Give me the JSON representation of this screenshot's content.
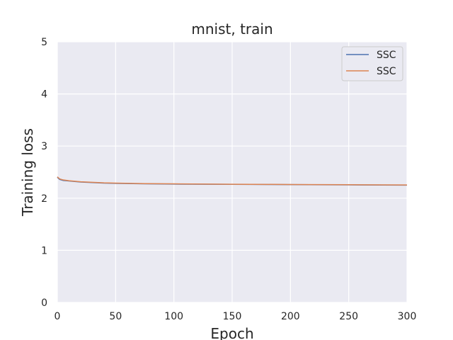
{
  "chart_data": {
    "type": "line",
    "title": "mnist, train",
    "xlabel": "Epoch",
    "ylabel": "Training loss",
    "xlim": [
      0,
      300
    ],
    "ylim": [
      0,
      5
    ],
    "xticks": [
      0,
      50,
      100,
      150,
      200,
      250,
      300
    ],
    "yticks": [
      0,
      1,
      2,
      3,
      4,
      5
    ],
    "grid": true,
    "legend_position": "top-right",
    "series": [
      {
        "name": "SSC",
        "color": "#4c72b0",
        "x": [
          0,
          2,
          5,
          10,
          15,
          20,
          30,
          40,
          50,
          75,
          100,
          150,
          200,
          250,
          300
        ],
        "y": [
          2.4,
          2.36,
          2.34,
          2.33,
          2.32,
          2.31,
          2.3,
          2.29,
          2.285,
          2.275,
          2.27,
          2.265,
          2.26,
          2.255,
          2.25
        ]
      },
      {
        "name": "SSC",
        "color": "#dd8452",
        "x": [
          0,
          2,
          5,
          10,
          15,
          20,
          30,
          40,
          50,
          75,
          100,
          150,
          200,
          250,
          300
        ],
        "y": [
          2.41,
          2.37,
          2.35,
          2.335,
          2.325,
          2.315,
          2.305,
          2.295,
          2.29,
          2.28,
          2.275,
          2.268,
          2.263,
          2.258,
          2.253
        ]
      }
    ]
  }
}
